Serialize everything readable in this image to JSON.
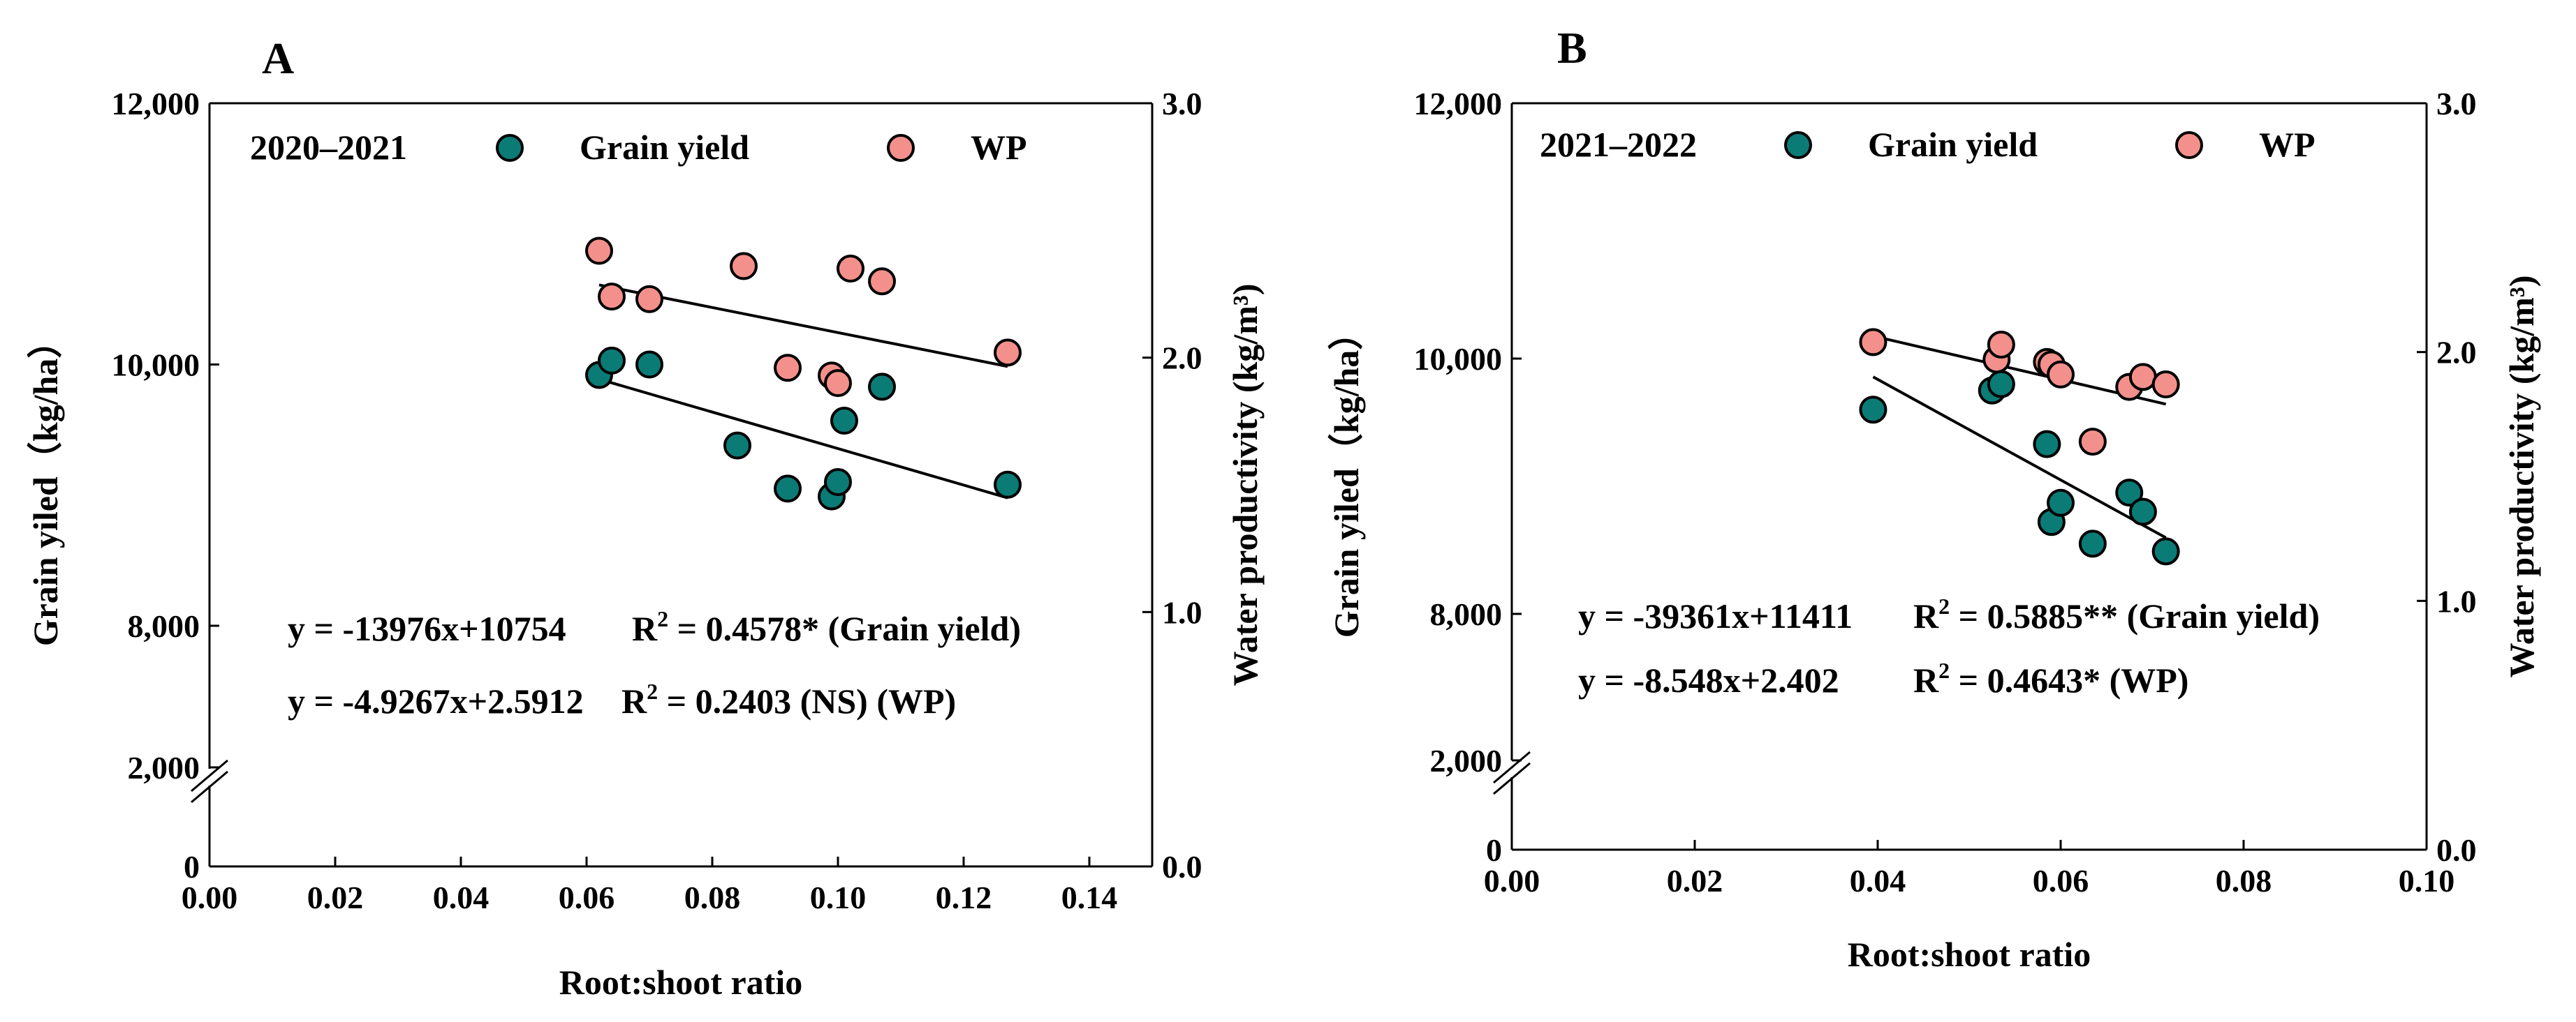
{
  "chart_data": [
    {
      "type": "scatter",
      "panel_label": "A",
      "season": "2020–2021",
      "xlabel": "Root:shoot ratio",
      "ylabel": "Grain yiled（kg/ha）",
      "y2label": "Water productivity (kg/m³)",
      "xlim": [
        0,
        0.15
      ],
      "x_ticks": [
        0,
        0.02,
        0.04,
        0.06,
        0.08,
        0.1,
        0.12,
        0.14
      ],
      "x_tick_labels": [
        "0.00",
        "0.02",
        "0.04",
        "0.06",
        "0.08",
        "0.10",
        "0.12",
        "0.14"
      ],
      "y_ticks": [
        8000,
        10000,
        12000
      ],
      "y_tick_labels": [
        "8,000",
        "10,000",
        "12,000"
      ],
      "y_low_ticks": [
        0,
        2000
      ],
      "y_low_tick_labels": [
        "0",
        "2,000"
      ],
      "y2_ticks": [
        0,
        1,
        2,
        3
      ],
      "y2_tick_labels": [
        "0.0",
        "1.0",
        "2.0",
        "3.0"
      ],
      "legend": [
        "Grain yield",
        "WP"
      ],
      "colors": {
        "grain": "#0b7b76",
        "wp": "#f4908b"
      },
      "series": [
        {
          "name": "Grain yield",
          "points": [
            [
              0.062,
              9920
            ],
            [
              0.064,
              10030
            ],
            [
              0.07,
              10000
            ],
            [
              0.084,
              9380
            ],
            [
              0.092,
              9050
            ],
            [
              0.099,
              8990
            ],
            [
              0.1,
              9100
            ],
            [
              0.101,
              9570
            ],
            [
              0.107,
              9830
            ],
            [
              0.127,
              9080
            ]
          ],
          "fit": {
            "slope": -13976,
            "intercept": 10754,
            "x_range": [
              0.062,
              0.127
            ]
          }
        },
        {
          "name": "WP",
          "points": [
            [
              0.062,
              2.42
            ],
            [
              0.064,
              2.24
            ],
            [
              0.07,
              2.23
            ],
            [
              0.085,
              2.36
            ],
            [
              0.092,
              1.96
            ],
            [
              0.099,
              1.93
            ],
            [
              0.1,
              1.9
            ],
            [
              0.102,
              2.35
            ],
            [
              0.107,
              2.3
            ],
            [
              0.127,
              2.02
            ]
          ],
          "fit": {
            "slope": -4.9267,
            "intercept": 2.5912,
            "x_range": [
              0.062,
              0.127
            ]
          }
        }
      ],
      "equations": [
        {
          "eq": "y = -13976x+10754",
          "r2_prefix": "R",
          "r2_value": " = 0.4578* (Grain yield)"
        },
        {
          "eq": "y = -4.9267x+2.5912",
          "r2_prefix": "R",
          "r2_value": " = 0.2403 (NS) (WP)"
        }
      ]
    },
    {
      "type": "scatter",
      "panel_label": "B",
      "season": "2021–2022",
      "xlabel": "Root:shoot ratio",
      "ylabel": "Grain yiled（kg/ha）",
      "y2label": "Water productivity (kg/m³)",
      "xlim": [
        0,
        0.1
      ],
      "x_ticks": [
        0,
        0.02,
        0.04,
        0.06,
        0.08,
        0.1
      ],
      "x_tick_labels": [
        "0.00",
        "0.02",
        "0.04",
        "0.06",
        "0.08",
        "0.10"
      ],
      "y_ticks": [
        8000,
        10000,
        12000
      ],
      "y_tick_labels": [
        "8,000",
        "10,000",
        "12,000"
      ],
      "y_low_ticks": [
        0,
        2000
      ],
      "y_low_tick_labels": [
        "0",
        "2,000"
      ],
      "y2_ticks": [
        0,
        1,
        2,
        3
      ],
      "y2_tick_labels": [
        "0.0",
        "1.0",
        "2.0",
        "3.0"
      ],
      "legend": [
        "Grain yield",
        "WP"
      ],
      "colors": {
        "grain": "#0b7b76",
        "wp": "#f4908b"
      },
      "series": [
        {
          "name": "Grain yield",
          "points": [
            [
              0.0395,
              9600
            ],
            [
              0.0525,
              9750
            ],
            [
              0.0535,
              9800
            ],
            [
              0.0585,
              9330
            ],
            [
              0.059,
              8720
            ],
            [
              0.06,
              8870
            ],
            [
              0.0635,
              8550
            ],
            [
              0.0675,
              8950
            ],
            [
              0.069,
              8800
            ],
            [
              0.0715,
              8490
            ]
          ],
          "fit": {
            "slope": -39361,
            "intercept": 11411,
            "x_range": [
              0.0395,
              0.0715
            ]
          }
        },
        {
          "name": "WP",
          "points": [
            [
              0.0395,
              2.04
            ],
            [
              0.053,
              1.97
            ],
            [
              0.0535,
              2.03
            ],
            [
              0.0585,
              1.96
            ],
            [
              0.059,
              1.95
            ],
            [
              0.06,
              1.91
            ],
            [
              0.0635,
              1.64
            ],
            [
              0.0675,
              1.86
            ],
            [
              0.069,
              1.9
            ],
            [
              0.0715,
              1.87
            ]
          ],
          "fit": {
            "slope": -8.548,
            "intercept": 2.402,
            "x_range": [
              0.0395,
              0.0715
            ]
          }
        }
      ],
      "equations": [
        {
          "eq": "y = -39361x+11411",
          "r2_prefix": "R",
          "r2_value": " = 0.5885** (Grain yield)"
        },
        {
          "eq": "y = -8.548x+2.402",
          "r2_prefix": "R",
          "r2_value": " = 0.4643* (WP)"
        }
      ]
    }
  ]
}
